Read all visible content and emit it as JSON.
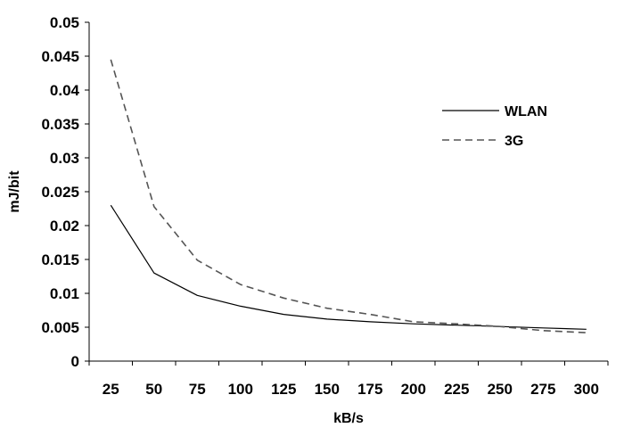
{
  "chart_data": {
    "type": "line",
    "title": "",
    "xlabel": "kB/s",
    "ylabel": "mJ/bit",
    "categories": [
      "25",
      "50",
      "75",
      "100",
      "125",
      "150",
      "175",
      "200",
      "225",
      "250",
      "275",
      "300"
    ],
    "ylim": [
      0,
      0.05
    ],
    "yticks": [
      "0",
      "0.005",
      "0.01",
      "0.015",
      "0.02",
      "0.025",
      "0.03",
      "0.035",
      "0.04",
      "0.045",
      "0.05"
    ],
    "grid": false,
    "legend_position": "top-right",
    "series": [
      {
        "name": "WLAN",
        "style": "solid",
        "color": "#000000",
        "values": [
          0.023,
          0.013,
          0.0097,
          0.0081,
          0.0069,
          0.0062,
          0.0058,
          0.0055,
          0.0053,
          0.0051,
          0.0049,
          0.0047
        ]
      },
      {
        "name": "3G",
        "style": "dashed",
        "color": "#555555",
        "values": [
          0.0445,
          0.0228,
          0.0149,
          0.0113,
          0.0093,
          0.0078,
          0.0069,
          0.0058,
          0.0055,
          0.0051,
          0.0045,
          0.0042
        ]
      }
    ]
  }
}
